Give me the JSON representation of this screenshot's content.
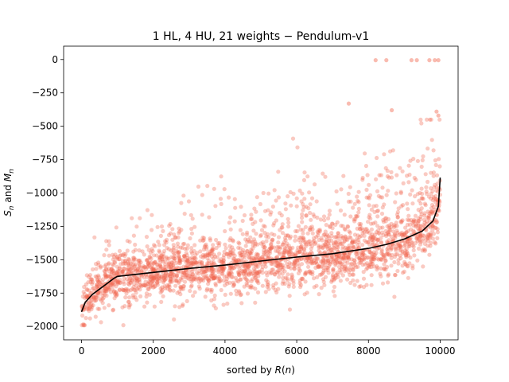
{
  "chart_data": {
    "type": "scatter",
    "title": "1 HL, 4 HU, 21 weights − Pendulum-v1",
    "xlabel": "sorted by R(n)",
    "ylabel": "S_n and M_n",
    "xlim": [
      -500,
      10500
    ],
    "ylim": [
      -2100,
      100
    ],
    "x_ticks": [
      0,
      2000,
      4000,
      6000,
      8000,
      10000
    ],
    "x_tick_labels": [
      "0",
      "2000",
      "4000",
      "6000",
      "8000",
      "10000"
    ],
    "y_ticks": [
      0,
      -250,
      -500,
      -750,
      -1000,
      -1250,
      -1500,
      -1750,
      -2000
    ],
    "y_tick_labels": [
      "0",
      "−250",
      "−500",
      "−750",
      "−1000",
      "−1250",
      "−1500",
      "−1750",
      "−2000"
    ],
    "grid": false,
    "legend": "none",
    "colors": {
      "scatter": "#f26850",
      "mean_line": "#000000"
    },
    "series": [
      {
        "kind": "scatter",
        "description_points_outline": [
          [
            0,
            -1980
          ],
          [
            0,
            -1350
          ],
          [
            500,
            -1950
          ],
          [
            500,
            -1150
          ],
          [
            1000,
            -1950
          ],
          [
            1000,
            -750
          ],
          [
            2000,
            -1950
          ],
          [
            2000,
            -900
          ],
          [
            3000,
            -1950
          ],
          [
            3000,
            -900
          ],
          [
            4000,
            -1950
          ],
          [
            4000,
            -850
          ],
          [
            5000,
            -1950
          ],
          [
            5000,
            -800
          ],
          [
            6000,
            -1950
          ],
          [
            6000,
            -750
          ],
          [
            7000,
            -1950
          ],
          [
            7000,
            -700
          ],
          [
            8000,
            -1950
          ],
          [
            8000,
            -650
          ],
          [
            9000,
            -1950
          ],
          [
            9000,
            -600
          ],
          [
            10000,
            -1950
          ],
          [
            10000,
            -500
          ]
        ]
      },
      {
        "kind": "line",
        "x": [
          0,
          100,
          300,
          500,
          700,
          900,
          1000,
          2000,
          3000,
          4000,
          5000,
          6000,
          7000,
          8000,
          8500,
          9000,
          9500,
          9800,
          9950,
          10000
        ],
        "y": [
          -1890,
          -1820,
          -1760,
          -1720,
          -1680,
          -1640,
          -1625,
          -1595,
          -1565,
          -1540,
          -1510,
          -1480,
          -1455,
          -1415,
          -1385,
          -1345,
          -1285,
          -1210,
          -1100,
          -885
        ]
      }
    ],
    "outliers": [
      {
        "x": 8200,
        "y": -5
      },
      {
        "x": 8500,
        "y": -5
      },
      {
        "x": 9200,
        "y": -5
      },
      {
        "x": 9350,
        "y": -5
      },
      {
        "x": 9700,
        "y": -5
      },
      {
        "x": 9850,
        "y": -5
      },
      {
        "x": 9950,
        "y": -5
      },
      {
        "x": 7450,
        "y": -330
      },
      {
        "x": 8650,
        "y": -380
      },
      {
        "x": 9900,
        "y": -390
      },
      {
        "x": 9950,
        "y": -420
      }
    ]
  }
}
